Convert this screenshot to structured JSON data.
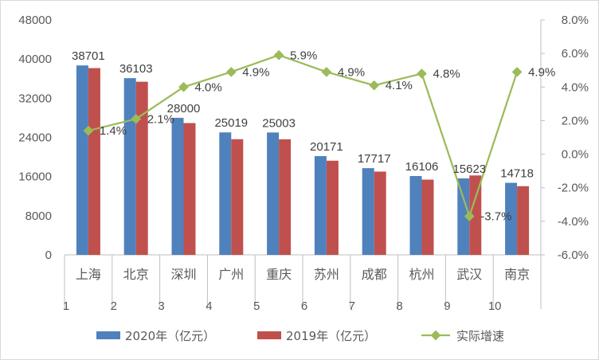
{
  "chart_data": {
    "type": "bar",
    "categories": [
      "上海",
      "北京",
      "深圳",
      "广州",
      "重庆",
      "苏州",
      "成都",
      "杭州",
      "武汉",
      "南京"
    ],
    "category_index": [
      "1",
      "2",
      "3",
      "4",
      "5",
      "6",
      "7",
      "8",
      "9",
      "10"
    ],
    "series": [
      {
        "name": "2020年（亿元）",
        "type": "bar",
        "color": "#4f81bd",
        "values": [
          38701,
          36103,
          28000,
          25019,
          25003,
          20171,
          17717,
          16106,
          15623,
          14718
        ],
        "labels": [
          "38701",
          "36103",
          "28000",
          "25019",
          "25003",
          "20171",
          "17717",
          "16106",
          "15623",
          "14718"
        ]
      },
      {
        "name": "2019年（亿元）",
        "type": "bar",
        "color": "#c0504d",
        "values": [
          38155,
          35371,
          26927,
          23629,
          23606,
          19236,
          17013,
          15373,
          16223,
          14031
        ]
      },
      {
        "name": "实际增速",
        "type": "line",
        "axis": "right",
        "color": "#9bbb59",
        "values": [
          1.4,
          2.1,
          4.0,
          4.9,
          5.9,
          4.9,
          4.1,
          4.8,
          -3.7,
          4.9
        ],
        "labels": [
          "1.4%",
          "2.1%",
          "4.0%",
          "4.9%",
          "5.9%",
          "4.9%",
          "4.1%",
          "4.8%",
          "-3.7%",
          "4.9%"
        ]
      }
    ],
    "y_left": {
      "min": 0,
      "max": 48000,
      "ticks": [
        "0",
        "8000",
        "16000",
        "24000",
        "32000",
        "40000",
        "48000"
      ]
    },
    "y_right": {
      "min": -6,
      "max": 8,
      "ticks": [
        "-6.0%",
        "-4.0%",
        "-2.0%",
        "0.0%",
        "2.0%",
        "4.0%",
        "6.0%",
        "8.0%"
      ]
    },
    "grid": false,
    "legend_position": "bottom"
  }
}
